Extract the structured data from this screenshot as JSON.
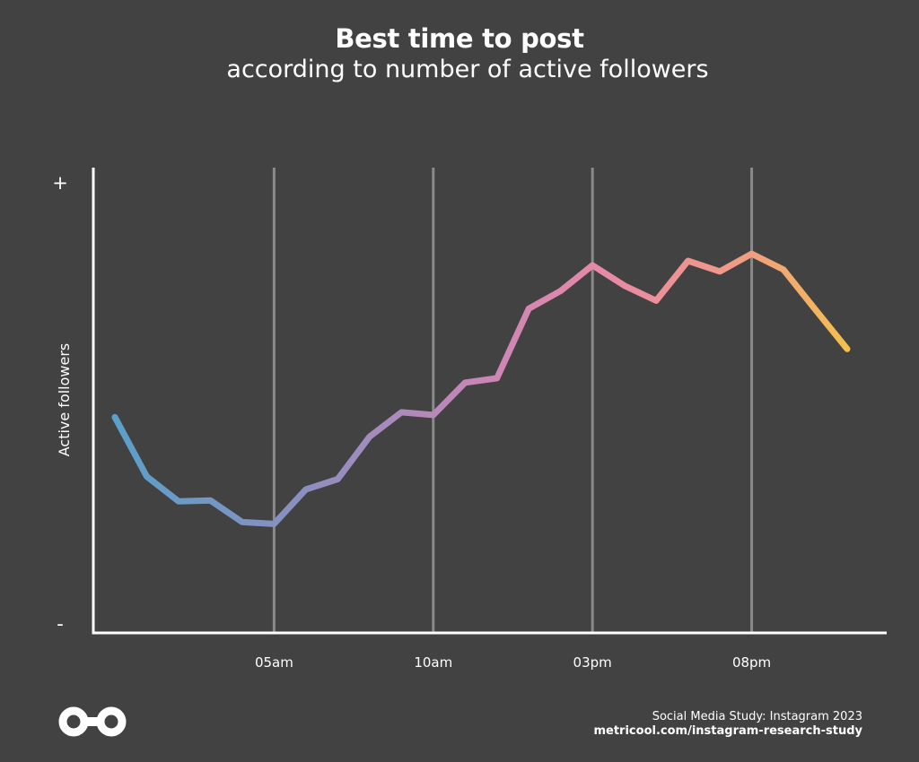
{
  "header": {
    "title": "Best time to post",
    "subtitle": "according to number of active followers"
  },
  "footer": {
    "study": "Social Media Study: Instagram 2023",
    "url": "metricool.com/instagram-research-study"
  },
  "logo": {
    "icon": "infinity-logo-icon"
  },
  "colors": {
    "background": "#424242",
    "axis": "#ffffff",
    "gridline": "#8a8a8a",
    "gradient": [
      "#5aa0c8",
      "#8a8fc0",
      "#c985b8",
      "#e98aa5",
      "#f19c83",
      "#f4bf4f"
    ]
  },
  "chart_data": {
    "type": "line",
    "title": "Best time to post",
    "subtitle": "according to number of active followers",
    "ylabel": "Active followers",
    "y_tick_labels": [
      "+",
      "-"
    ],
    "xlabel": "",
    "x_tick_labels": [
      "05am",
      "10am",
      "03pm",
      "08pm"
    ],
    "x_tick_hours": [
      5,
      10,
      15,
      20
    ],
    "xlim": [
      -0.5,
      23.5
    ],
    "ylim": [
      0,
      100
    ],
    "grid": "vertical at x ticks",
    "series": [
      {
        "x": [
          0,
          1,
          2,
          3,
          4,
          5,
          6,
          7,
          8,
          9,
          10,
          11,
          12,
          13,
          14,
          15,
          16,
          17,
          18,
          19,
          20,
          21,
          22,
          23
        ],
        "values": [
          47.3,
          33.9,
          28.3,
          28.5,
          23.6,
          23.2,
          31.0,
          33.3,
          42.9,
          48.4,
          47.8,
          55.1,
          56.1,
          71.8,
          75.8,
          81.6,
          77.0,
          73.6,
          82.6,
          80.2,
          84.2,
          80.6,
          71.6,
          62.7
        ]
      }
    ]
  }
}
